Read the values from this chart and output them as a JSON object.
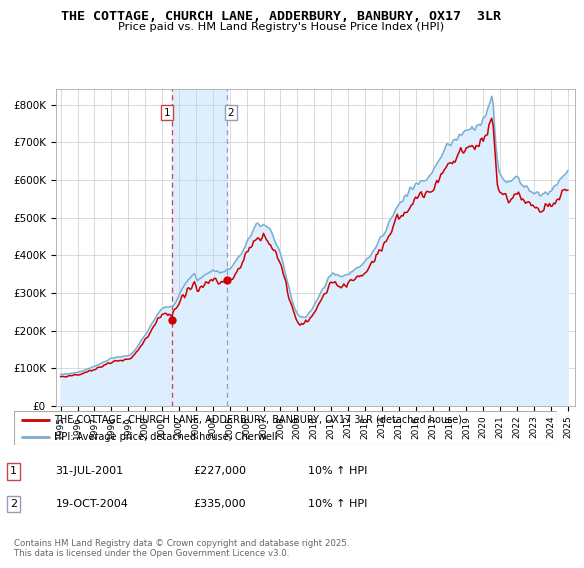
{
  "title": "THE COTTAGE, CHURCH LANE, ADDERBURY, BANBURY, OX17  3LR",
  "subtitle": "Price paid vs. HM Land Registry's House Price Index (HPI)",
  "legend_label_red": "THE COTTAGE, CHURCH LANE, ADDERBURY, BANBURY, OX17 3LR (detached house)",
  "legend_label_blue": "HPI: Average price, detached house, Cherwell",
  "footer": "Contains HM Land Registry data © Crown copyright and database right 2025.\nThis data is licensed under the Open Government Licence v3.0.",
  "purchase1_date": "31-JUL-2001",
  "purchase1_price": "£227,000",
  "purchase1_hpi": "10% ↑ HPI",
  "purchase2_date": "19-OCT-2004",
  "purchase2_price": "£335,000",
  "purchase2_hpi": "10% ↑ HPI",
  "purchase1_x": 2001.58,
  "purchase1_y": 227000,
  "purchase2_x": 2004.83,
  "purchase2_y": 335000,
  "ylim_max": 840000,
  "yticks": [
    0,
    100000,
    200000,
    300000,
    400000,
    500000,
    600000,
    700000,
    800000
  ],
  "ytick_labels": [
    "£0",
    "£100K",
    "£200K",
    "£300K",
    "£400K",
    "£500K",
    "£600K",
    "£700K",
    "£800K"
  ],
  "red_color": "#cc0000",
  "blue_color": "#7aadcf",
  "highlight_color": "#ddeeff",
  "grid_color": "#cccccc",
  "vline1_color": "#cc4444",
  "vline2_color": "#9999bb",
  "background_color": "#ffffff",
  "hpi_base_values": [
    83221,
    83700,
    84179,
    84658,
    85137,
    85616,
    86095,
    86574,
    87053,
    87532,
    88011,
    88490,
    88969,
    89926,
    91362,
    92797,
    94233,
    95669,
    97104,
    98540,
    99975,
    101411,
    102846,
    104282,
    105717,
    107153,
    108588,
    110024,
    111938,
    113852,
    115766,
    117680,
    119594,
    121508,
    123422,
    125336,
    127250,
    127729,
    128208,
    128688,
    129167,
    129646,
    130125,
    130604,
    131083,
    131563,
    132042,
    132521,
    133000,
    135333,
    139000,
    142667,
    147667,
    152667,
    157667,
    163333,
    169000,
    174667,
    180333,
    186000,
    191667,
    197333,
    203000,
    209333,
    215667,
    222000,
    228333,
    234667,
    241000,
    247333,
    253667,
    260000,
    260500,
    261000,
    261500,
    262000,
    262500,
    263000,
    263500,
    264000,
    268000,
    274000,
    282000,
    290000,
    298000,
    306000,
    313000,
    318000,
    323000,
    328000,
    333000,
    338000,
    343000,
    348000,
    353000,
    358000,
    334000,
    336000,
    338000,
    340000,
    342000,
    344000,
    347000,
    350000,
    353000,
    356000,
    358000,
    360000,
    360000,
    359000,
    358000,
    357000,
    356000,
    356000,
    356000,
    356000,
    357000,
    359000,
    361000,
    363000,
    366000,
    369000,
    373000,
    378000,
    383000,
    389000,
    395000,
    401000,
    408000,
    415000,
    422000,
    430000,
    438000,
    446000,
    453000,
    459000,
    464000,
    469000,
    473000,
    477000,
    480000,
    482000,
    483000,
    483000,
    482000,
    480000,
    477000,
    473000,
    468000,
    462000,
    455000,
    447000,
    438000,
    428000,
    418000,
    407000,
    396000,
    383000,
    369000,
    354000,
    338000,
    322000,
    306000,
    291000,
    277000,
    265000,
    255000,
    247000,
    242000,
    239000,
    237000,
    236000,
    236000,
    237000,
    239000,
    242000,
    246000,
    251000,
    257000,
    263000,
    270000,
    277000,
    284000,
    291000,
    298000,
    305000,
    312000,
    319000,
    326000,
    333000,
    339000,
    345000,
    350000,
    352000,
    351000,
    350000,
    348000,
    346000,
    344000,
    343000,
    343000,
    344000,
    346000,
    349000,
    352000,
    355000,
    358000,
    361000,
    364000,
    365000,
    367000,
    369000,
    371000,
    374000,
    377000,
    380000,
    384000,
    388000,
    393000,
    398000,
    403000,
    409000,
    415000,
    421000,
    427000,
    433000,
    439000,
    445000,
    451000,
    458000,
    465000,
    473000,
    481000,
    490000,
    498000,
    507000,
    515000,
    522000,
    529000,
    535000,
    540000,
    544000,
    548000,
    552000,
    556000,
    560000,
    564000,
    568000,
    572000,
    576000,
    580000,
    584000,
    587000,
    590000,
    592000,
    594000,
    596000,
    598000,
    600000,
    603000,
    606000,
    610000,
    614000,
    619000,
    624000,
    630000,
    637000,
    644000,
    651000,
    658000,
    665000,
    672000,
    678000,
    683000,
    688000,
    692000,
    695000,
    698000,
    701000,
    704000,
    707000,
    711000,
    715000,
    719000,
    723000,
    726000,
    729000,
    731000,
    733000,
    734000,
    735000,
    736000,
    737000,
    739000,
    741000,
    743000,
    746000,
    749000,
    753000,
    757000,
    762000,
    770000,
    780000,
    792000,
    805000,
    819000,
    834000,
    766000,
    703000,
    659000,
    630000,
    614000,
    606000,
    601000,
    598000,
    596000,
    595000,
    595000,
    596000,
    597000,
    599000,
    601000,
    603000,
    605000,
    601000,
    598000,
    594000,
    590000,
    586000,
    583000,
    580000,
    577000,
    575000,
    572000,
    570000,
    568000,
    566000,
    565000,
    564000,
    563000,
    562000,
    562000,
    562000,
    563000,
    564000,
    566000,
    568000,
    570000,
    573000,
    576000,
    580000,
    584000,
    588000,
    593000,
    598000,
    603000,
    608000,
    613000,
    618000,
    623000,
    628000
  ],
  "noise_seed": 42,
  "xlim_left": 1994.7,
  "xlim_right": 2025.4
}
